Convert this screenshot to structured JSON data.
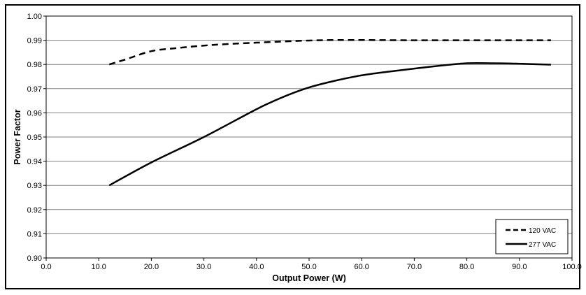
{
  "chart_data": {
    "type": "line",
    "xlabel": "Output Power (W)",
    "ylabel": "Power Factor",
    "xlim": [
      0,
      100
    ],
    "ylim": [
      0.9,
      1.0
    ],
    "x_ticks": [
      "0.0",
      "10.0",
      "20.0",
      "30.0",
      "40.0",
      "50.0",
      "60.0",
      "70.0",
      "80.0",
      "90.0",
      "100.0"
    ],
    "y_ticks": [
      "0.90",
      "0.91",
      "0.92",
      "0.93",
      "0.94",
      "0.95",
      "0.96",
      "0.97",
      "0.98",
      "0.99",
      "1.00"
    ],
    "grid": "horizontal",
    "legend_position": "bottom-right",
    "series": [
      {
        "name": "120 VAC",
        "style": "dashed",
        "color": "#000000",
        "points": [
          [
            12,
            0.98
          ],
          [
            15,
            0.982
          ],
          [
            20,
            0.9855
          ],
          [
            25,
            0.9868
          ],
          [
            30,
            0.9878
          ],
          [
            35,
            0.9885
          ],
          [
            40,
            0.989
          ],
          [
            45,
            0.9895
          ],
          [
            50,
            0.9899
          ],
          [
            55,
            0.9901
          ],
          [
            60,
            0.9901
          ],
          [
            70,
            0.99
          ],
          [
            80,
            0.99
          ],
          [
            90,
            0.99
          ],
          [
            96,
            0.99
          ]
        ]
      },
      {
        "name": "277 VAC",
        "style": "solid",
        "color": "#000000",
        "points": [
          [
            12,
            0.93
          ],
          [
            20,
            0.9395
          ],
          [
            30,
            0.95
          ],
          [
            40,
            0.9615
          ],
          [
            45,
            0.9665
          ],
          [
            50,
            0.9705
          ],
          [
            55,
            0.9733
          ],
          [
            60,
            0.9755
          ],
          [
            65,
            0.977
          ],
          [
            70,
            0.9783
          ],
          [
            75,
            0.9795
          ],
          [
            80,
            0.9805
          ],
          [
            85,
            0.9805
          ],
          [
            90,
            0.9803
          ],
          [
            96,
            0.9799
          ]
        ]
      }
    ]
  }
}
